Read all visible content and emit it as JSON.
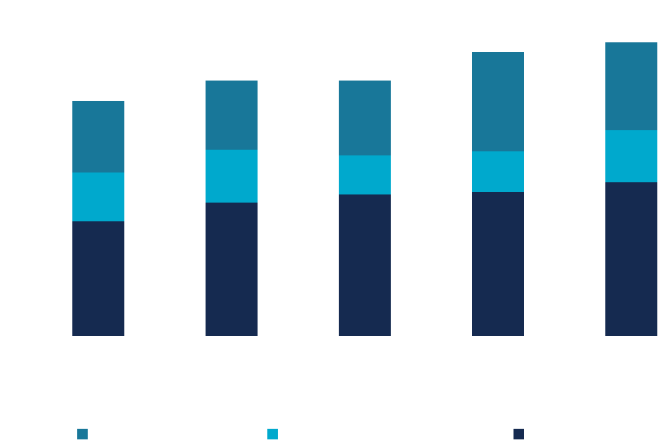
{
  "chart_data": {
    "type": "bar",
    "stacked": true,
    "categories": [
      "",
      "",
      "",
      "",
      ""
    ],
    "series": [
      {
        "color": "#152a50",
        "values": [
          141,
          164,
          174,
          177,
          189
        ]
      },
      {
        "color": "#00a9cd",
        "values": [
          60,
          65,
          48,
          50,
          64
        ]
      },
      {
        "color": "#187799",
        "values": [
          88,
          85,
          92,
          122,
          108
        ]
      }
    ],
    "ylim": [
      0,
      361
    ],
    "grid": false,
    "legend_position": "bottom",
    "title": "",
    "xlabel": "",
    "ylabel": ""
  }
}
